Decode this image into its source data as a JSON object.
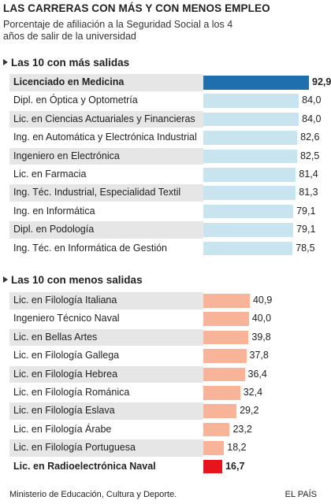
{
  "header": {
    "title": "LAS CARRERAS CON MÁS Y CON MENOS EMPLEO",
    "subtitle": "Porcentaje de afiliación a la Seguridad Social a los 4 años de salir de la universidad"
  },
  "sections": {
    "top_title": "Las 10 con más salidas",
    "bottom_title": "Las 10 con menos salidas"
  },
  "footer": {
    "source": "Ministerio de Educación, Cultura y Deporte.",
    "brand": "EL PAÍS"
  },
  "colors": {
    "top_bar": "#c8e4ef",
    "top_highlight": "#1f6fae",
    "bottom_bar": "#f7b499",
    "bottom_highlight": "#e8141c"
  },
  "chart_data": [
    {
      "type": "bar",
      "orientation": "horizontal",
      "title": "Las 10 con más salidas",
      "categories": [
        "Licenciado en Medicina",
        "Dipl. en Óptica y Optometría",
        "Lic. en Ciencias Actuariales y Financieras",
        "Ing. en Automática y Electrónica Industrial",
        "Ingeniero en Electrónica",
        "Lic. en Farmacia",
        "Ing. Téc. Industrial, Especialidad Textil",
        "Ing. en Informática",
        "Dipl. en Podología",
        "Ing. Téc. en Informática de Gestión"
      ],
      "values": [
        92.9,
        84.0,
        84.0,
        82.6,
        82.5,
        81.4,
        81.3,
        79.1,
        79.1,
        78.5
      ],
      "labels": [
        "92,9",
        "84,0",
        "84,0",
        "82,6",
        "82,5",
        "81,4",
        "81,3",
        "79,1",
        "79,1",
        "78,5"
      ],
      "highlight_index": 0,
      "xlim": [
        0,
        92.9
      ]
    },
    {
      "type": "bar",
      "orientation": "horizontal",
      "title": "Las 10 con menos salidas",
      "categories": [
        "Lic. en Filología Italiana",
        "Ingeniero Técnico Naval",
        "Lic. en Bellas Artes",
        "Lic. en Filología Gallega",
        "Lic. en Filología Hebrea",
        "Lic. en Filología Románica",
        "Lic. en Filología Eslava",
        "Lic. en Filología Árabe",
        "Lic. en Filología Portuguesa",
        "Lic. en Radioelectrónica Naval"
      ],
      "values": [
        40.9,
        40.0,
        39.8,
        37.8,
        36.4,
        32.4,
        29.2,
        23.2,
        18.2,
        16.7
      ],
      "labels": [
        "40,9",
        "40,0",
        "39,8",
        "37,8",
        "36,4",
        "32,4",
        "29,2",
        "23,2",
        "18,2",
        "16,7"
      ],
      "highlight_index": 9,
      "xlim": [
        0,
        92.9
      ]
    }
  ]
}
